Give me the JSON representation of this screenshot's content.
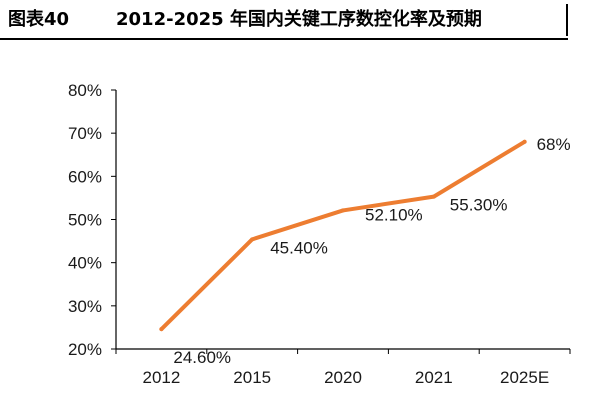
{
  "header": {
    "figure_number": "图表40",
    "title": "2012-2025 年国内关键工序数控化率及预期"
  },
  "colors": {
    "line": "#ed7d31",
    "axis": "#000000",
    "text": "#1a1a1a"
  },
  "chart_data": {
    "type": "line",
    "categories": [
      "2012",
      "2015",
      "2020",
      "2021",
      "2025E"
    ],
    "series": [
      {
        "values": [
          24.6,
          45.4,
          52.1,
          55.3,
          68
        ]
      }
    ],
    "data_labels": [
      "24.60%",
      "45.40%",
      "52.10%",
      "55.30%",
      "68%"
    ],
    "y_ticks": [
      "20%",
      "30%",
      "40%",
      "50%",
      "60%",
      "70%",
      "80%"
    ],
    "ylim": [
      20,
      80
    ],
    "title": "2012-2025 年国内关键工序数控化率及预期",
    "xlabel": "",
    "ylabel": "",
    "grid": false,
    "legend": "none"
  }
}
